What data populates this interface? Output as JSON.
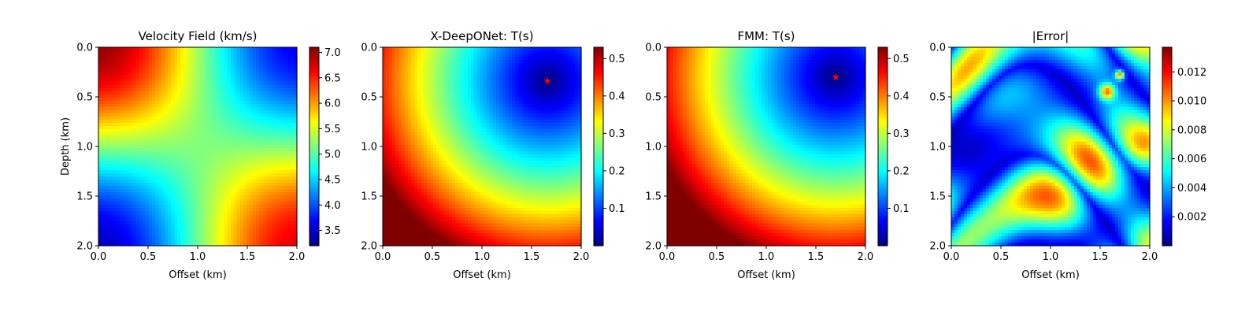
{
  "chart_data": [
    {
      "type": "heatmap",
      "field": "velocity",
      "title": "Velocity Field (km/s)",
      "xlabel": "Offset (km)",
      "ylabel": "Depth (km)",
      "xlim": [
        0.0,
        2.0
      ],
      "ylim": [
        2.0,
        0.0
      ],
      "xticks": [
        "0.0",
        "0.5",
        "1.0",
        "1.5",
        "2.0"
      ],
      "yticks": [
        "0.0",
        "0.5",
        "1.0",
        "1.5",
        "2.0"
      ],
      "colormap": "jet",
      "clim": [
        3.2,
        7.1
      ],
      "colorbar_ticks": [
        "3.5",
        "4.0",
        "4.5",
        "5.0",
        "5.5",
        "6.0",
        "6.5",
        "7.0"
      ],
      "colorbar_tick_values": [
        3.5,
        4.0,
        4.5,
        5.0,
        5.5,
        6.0,
        6.5,
        7.0
      ],
      "source": null
    },
    {
      "type": "heatmap",
      "field": "traveltime",
      "title": "X-DeepONet: T(s)",
      "xlabel": "Offset (km)",
      "ylabel": "",
      "xlim": [
        0.0,
        2.0
      ],
      "ylim": [
        2.0,
        0.0
      ],
      "xticks": [
        "0.0",
        "0.5",
        "1.0",
        "1.5",
        "2.0"
      ],
      "yticks": [
        "0.0",
        "0.5",
        "1.0",
        "1.5",
        "2.0"
      ],
      "colormap": "jet",
      "clim": [
        0.0,
        0.53
      ],
      "colorbar_ticks": [
        "0.1",
        "0.2",
        "0.3",
        "0.4",
        "0.5"
      ],
      "colorbar_tick_values": [
        0.1,
        0.2,
        0.3,
        0.4,
        0.5
      ],
      "source": {
        "x": 1.66,
        "y": 0.34,
        "marker": "star",
        "color": "#ff0000"
      }
    },
    {
      "type": "heatmap",
      "field": "traveltime",
      "title": "FMM: T(s)",
      "xlabel": "Offset (km)",
      "ylabel": "",
      "xlim": [
        0.0,
        2.0
      ],
      "ylim": [
        2.0,
        0.0
      ],
      "xticks": [
        "0.0",
        "0.5",
        "1.0",
        "1.5",
        "2.0"
      ],
      "yticks": [
        "0.0",
        "0.5",
        "1.0",
        "1.5",
        "2.0"
      ],
      "colormap": "jet",
      "clim": [
        0.0,
        0.53
      ],
      "colorbar_ticks": [
        "0.1",
        "0.2",
        "0.3",
        "0.4",
        "0.5"
      ],
      "colorbar_tick_values": [
        0.1,
        0.2,
        0.3,
        0.4,
        0.5
      ],
      "source": {
        "x": 1.7,
        "y": 0.3,
        "marker": "star",
        "color": "#ff0000"
      }
    },
    {
      "type": "heatmap",
      "field": "error",
      "title": "|Error|",
      "xlabel": "Offset (km)",
      "ylabel": "",
      "xlim": [
        0.0,
        2.0
      ],
      "ylim": [
        2.0,
        0.0
      ],
      "xticks": [
        "0.0",
        "0.5",
        "1.0",
        "1.5",
        "2.0"
      ],
      "yticks": [
        "0.0",
        "0.5",
        "1.0",
        "1.5",
        "2.0"
      ],
      "colormap": "jet",
      "clim": [
        0.0,
        0.0137
      ],
      "colorbar_ticks": [
        "0.002",
        "0.004",
        "0.006",
        "0.008",
        "0.010",
        "0.012"
      ],
      "colorbar_tick_values": [
        0.002,
        0.004,
        0.006,
        0.008,
        0.01,
        0.012
      ],
      "source": null
    }
  ]
}
